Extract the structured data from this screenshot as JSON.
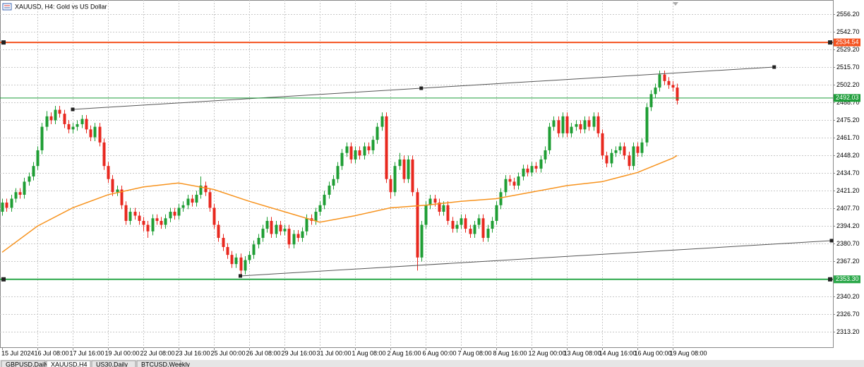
{
  "chart_data": {
    "type": "candlestick",
    "title": "XAUUSD, H4:  Gold vs US Dollar",
    "categories": [
      "15 Jul 2024",
      null,
      null,
      null,
      null,
      null,
      null,
      null,
      "16 Jul 08:00",
      null,
      null,
      null,
      null,
      null,
      null,
      null,
      "17 Jul 16:00",
      null,
      null,
      null,
      null,
      null,
      null,
      null,
      "19 Jul 00:00",
      null,
      null,
      null,
      null,
      null,
      null,
      null,
      "22 Jul 08:00",
      null,
      null,
      null,
      null,
      null,
      null,
      null,
      "23 Jul 16:00",
      null,
      null,
      null,
      null,
      null,
      null,
      null,
      "25 Jul 00:00",
      null,
      null,
      null,
      null,
      null,
      null,
      null,
      "26 Jul 08:00",
      null,
      null,
      null,
      null,
      null,
      null,
      null,
      "29 Jul 16:00",
      null,
      null,
      null,
      null,
      null,
      null,
      null,
      "31 Jul 00:00",
      null,
      null,
      null,
      null,
      null,
      null,
      null,
      "1 Aug 08:00",
      null,
      null,
      null,
      null,
      null,
      null,
      null,
      "2 Aug 16:00",
      null,
      null,
      null,
      null,
      null,
      null,
      null,
      "6 Aug 00:00",
      null,
      null,
      null,
      null,
      null,
      null,
      null,
      "7 Aug 08:00",
      null,
      null,
      null,
      null,
      null,
      null,
      null,
      "8 Aug 16:00",
      null,
      null,
      null,
      null,
      null,
      null,
      null,
      "12 Aug 00:00",
      null,
      null,
      null,
      null,
      null,
      null,
      null,
      "13 Aug 08:00",
      null,
      null,
      null,
      null,
      null,
      null,
      null,
      "14 Aug 16:00",
      null,
      null,
      null,
      null,
      null,
      null,
      null,
      "16 Aug 00:00",
      null,
      null,
      null,
      null,
      null,
      null,
      null,
      "19 Aug 08:00",
      null
    ],
    "ohlc": [
      [
        2405,
        2415,
        2402,
        2412
      ],
      [
        2412,
        2415,
        2405,
        2408
      ],
      [
        2408,
        2418,
        2405,
        2415
      ],
      [
        2415,
        2423,
        2412,
        2420
      ],
      [
        2420,
        2423,
        2415,
        2418
      ],
      [
        2418,
        2431,
        2415,
        2428
      ],
      [
        2428,
        2435,
        2425,
        2432
      ],
      [
        2432,
        2443,
        2429,
        2440
      ],
      [
        2440,
        2455,
        2437,
        2452
      ],
      [
        2452,
        2473,
        2449,
        2470
      ],
      [
        2470,
        2482,
        2467,
        2478
      ],
      [
        2478,
        2481,
        2472,
        2475
      ],
      [
        2475,
        2486,
        2472,
        2483
      ],
      [
        2483,
        2486,
        2477,
        2480
      ],
      [
        2480,
        2483,
        2469,
        2472
      ],
      [
        2472,
        2475,
        2465,
        2468
      ],
      [
        2468,
        2473,
        2465,
        2470
      ],
      [
        2470,
        2475,
        2467,
        2472
      ],
      [
        2472,
        2479,
        2469,
        2476
      ],
      [
        2476,
        2479,
        2465,
        2468
      ],
      [
        2468,
        2471,
        2459,
        2462
      ],
      [
        2462,
        2473,
        2459,
        2470
      ],
      [
        2470,
        2473,
        2455,
        2458
      ],
      [
        2458,
        2461,
        2437,
        2440
      ],
      [
        2440,
        2443,
        2427,
        2430
      ],
      [
        2430,
        2433,
        2417,
        2420
      ],
      [
        2420,
        2425,
        2417,
        2422
      ],
      [
        2422,
        2425,
        2407,
        2410
      ],
      [
        2410,
        2413,
        2395,
        2398
      ],
      [
        2398,
        2408,
        2395,
        2405
      ],
      [
        2405,
        2408,
        2399,
        2402
      ],
      [
        2402,
        2405,
        2395,
        2398
      ],
      [
        2398,
        2401,
        2390,
        2395
      ],
      [
        2395,
        2398,
        2385,
        2390
      ],
      [
        2390,
        2403,
        2387,
        2400
      ],
      [
        2400,
        2403,
        2395,
        2398
      ],
      [
        2398,
        2401,
        2392,
        2395
      ],
      [
        2395,
        2403,
        2392,
        2400
      ],
      [
        2400,
        2408,
        2397,
        2405
      ],
      [
        2405,
        2408,
        2399,
        2402
      ],
      [
        2402,
        2411,
        2399,
        2408
      ],
      [
        2408,
        2413,
        2405,
        2410
      ],
      [
        2410,
        2418,
        2407,
        2415
      ],
      [
        2415,
        2418,
        2409,
        2412
      ],
      [
        2412,
        2421,
        2409,
        2418
      ],
      [
        2418,
        2432,
        2415,
        2425
      ],
      [
        2425,
        2428,
        2417,
        2420
      ],
      [
        2420,
        2423,
        2405,
        2408
      ],
      [
        2408,
        2411,
        2392,
        2395
      ],
      [
        2395,
        2398,
        2382,
        2385
      ],
      [
        2385,
        2388,
        2375,
        2378
      ],
      [
        2378,
        2381,
        2369,
        2372
      ],
      [
        2372,
        2375,
        2362,
        2365
      ],
      [
        2365,
        2373,
        2362,
        2370
      ],
      [
        2370,
        2373,
        2355,
        2360
      ],
      [
        2360,
        2371,
        2357,
        2368
      ],
      [
        2368,
        2375,
        2365,
        2372
      ],
      [
        2372,
        2383,
        2369,
        2380
      ],
      [
        2380,
        2388,
        2377,
        2385
      ],
      [
        2385,
        2395,
        2382,
        2392
      ],
      [
        2392,
        2401,
        2389,
        2398
      ],
      [
        2398,
        2401,
        2385,
        2388
      ],
      [
        2388,
        2398,
        2385,
        2395
      ],
      [
        2395,
        2398,
        2387,
        2390
      ],
      [
        2390,
        2395,
        2387,
        2392
      ],
      [
        2392,
        2395,
        2377,
        2380
      ],
      [
        2380,
        2391,
        2377,
        2388
      ],
      [
        2388,
        2391,
        2382,
        2385
      ],
      [
        2385,
        2393,
        2382,
        2390
      ],
      [
        2390,
        2403,
        2387,
        2400
      ],
      [
        2400,
        2403,
        2395,
        2398
      ],
      [
        2398,
        2408,
        2395,
        2405
      ],
      [
        2405,
        2413,
        2402,
        2410
      ],
      [
        2410,
        2421,
        2407,
        2418
      ],
      [
        2418,
        2428,
        2415,
        2425
      ],
      [
        2425,
        2433,
        2422,
        2430
      ],
      [
        2430,
        2443,
        2427,
        2440
      ],
      [
        2440,
        2453,
        2437,
        2450
      ],
      [
        2450,
        2458,
        2447,
        2455
      ],
      [
        2455,
        2458,
        2442,
        2445
      ],
      [
        2445,
        2455,
        2442,
        2452
      ],
      [
        2452,
        2455,
        2445,
        2448
      ],
      [
        2448,
        2458,
        2445,
        2455
      ],
      [
        2455,
        2458,
        2449,
        2452
      ],
      [
        2452,
        2463,
        2449,
        2460
      ],
      [
        2460,
        2473,
        2457,
        2470
      ],
      [
        2470,
        2481,
        2467,
        2478
      ],
      [
        2478,
        2481,
        2427,
        2430
      ],
      [
        2430,
        2433,
        2415,
        2420
      ],
      [
        2420,
        2443,
        2417,
        2440
      ],
      [
        2440,
        2450,
        2437,
        2445
      ],
      [
        2445,
        2448,
        2427,
        2430
      ],
      [
        2430,
        2448,
        2427,
        2445
      ],
      [
        2445,
        2448,
        2417,
        2420
      ],
      [
        2420,
        2423,
        2360,
        2370
      ],
      [
        2370,
        2398,
        2367,
        2395
      ],
      [
        2395,
        2413,
        2392,
        2410
      ],
      [
        2410,
        2418,
        2407,
        2415
      ],
      [
        2415,
        2418,
        2409,
        2412
      ],
      [
        2412,
        2415,
        2402,
        2405
      ],
      [
        2405,
        2413,
        2402,
        2410
      ],
      [
        2410,
        2413,
        2395,
        2398
      ],
      [
        2398,
        2401,
        2389,
        2392
      ],
      [
        2392,
        2398,
        2389,
        2395
      ],
      [
        2395,
        2403,
        2392,
        2400
      ],
      [
        2400,
        2403,
        2389,
        2392
      ],
      [
        2392,
        2395,
        2385,
        2388
      ],
      [
        2388,
        2398,
        2385,
        2395
      ],
      [
        2395,
        2403,
        2392,
        2400
      ],
      [
        2400,
        2403,
        2382,
        2385
      ],
      [
        2385,
        2395,
        2382,
        2392
      ],
      [
        2392,
        2401,
        2389,
        2398
      ],
      [
        2398,
        2413,
        2395,
        2410
      ],
      [
        2410,
        2423,
        2407,
        2420
      ],
      [
        2420,
        2433,
        2417,
        2430
      ],
      [
        2430,
        2433,
        2425,
        2428
      ],
      [
        2428,
        2431,
        2422,
        2425
      ],
      [
        2425,
        2435,
        2422,
        2432
      ],
      [
        2432,
        2441,
        2429,
        2438
      ],
      [
        2438,
        2441,
        2432,
        2435
      ],
      [
        2435,
        2443,
        2432,
        2440
      ],
      [
        2440,
        2443,
        2435,
        2438
      ],
      [
        2438,
        2448,
        2435,
        2445
      ],
      [
        2445,
        2455,
        2442,
        2452
      ],
      [
        2452,
        2473,
        2449,
        2470
      ],
      [
        2470,
        2478,
        2467,
        2475
      ],
      [
        2475,
        2478,
        2462,
        2465
      ],
      [
        2465,
        2481,
        2462,
        2478
      ],
      [
        2478,
        2481,
        2462,
        2465
      ],
      [
        2465,
        2473,
        2462,
        2470
      ],
      [
        2470,
        2475,
        2467,
        2472
      ],
      [
        2472,
        2475,
        2465,
        2468
      ],
      [
        2468,
        2478,
        2465,
        2475
      ],
      [
        2475,
        2478,
        2467,
        2470
      ],
      [
        2470,
        2481,
        2467,
        2478
      ],
      [
        2478,
        2481,
        2462,
        2465
      ],
      [
        2465,
        2468,
        2445,
        2448
      ],
      [
        2448,
        2451,
        2439,
        2442
      ],
      [
        2442,
        2453,
        2439,
        2450
      ],
      [
        2450,
        2455,
        2447,
        2452
      ],
      [
        2452,
        2458,
        2449,
        2455
      ],
      [
        2455,
        2458,
        2445,
        2448
      ],
      [
        2448,
        2451,
        2437,
        2440
      ],
      [
        2440,
        2458,
        2437,
        2455
      ],
      [
        2455,
        2458,
        2447,
        2450
      ],
      [
        2450,
        2461,
        2447,
        2458
      ],
      [
        2458,
        2488,
        2455,
        2485
      ],
      [
        2485,
        2498,
        2482,
        2495
      ],
      [
        2495,
        2503,
        2492,
        2500
      ],
      [
        2500,
        2513,
        2497,
        2510
      ],
      [
        2510,
        2513,
        2502,
        2505
      ],
      [
        2505,
        2508,
        2499,
        2502
      ],
      [
        2502,
        2505,
        2497,
        2500
      ],
      [
        2500,
        2503,
        2487,
        2490
      ]
    ],
    "up_color": "#1f9e34",
    "down_color": "#e8281f",
    "ylim": [
      2300.8,
      2567
    ],
    "yticks": [
      {
        "value": 2556.2,
        "label": "2556.20"
      },
      {
        "value": 2542.7,
        "label": "2542.70"
      },
      {
        "value": 2529.2,
        "label": "2529.20"
      },
      {
        "value": 2515.7,
        "label": "2515.70"
      },
      {
        "value": 2502.2,
        "label": "2502.20"
      },
      {
        "value": 2488.7,
        "label": "2488.70"
      },
      {
        "value": 2475.2,
        "label": "2475.20"
      },
      {
        "value": 2461.7,
        "label": "2461.70"
      },
      {
        "value": 2448.2,
        "label": "2448.20"
      },
      {
        "value": 2434.7,
        "label": "2434.70"
      },
      {
        "value": 2421.2,
        "label": "2421.20"
      },
      {
        "value": 2407.7,
        "label": "2407.70"
      },
      {
        "value": 2394.2,
        "label": "2394.20"
      },
      {
        "value": 2380.7,
        "label": "2380.70"
      },
      {
        "value": 2367.2,
        "label": "2367.20"
      },
      {
        "value": 2353.7,
        "label": "2353.70"
      },
      {
        "value": 2340.2,
        "label": "2340.20"
      },
      {
        "value": 2326.7,
        "label": "2326.70"
      },
      {
        "value": 2313.2,
        "label": "2313.20"
      }
    ],
    "grid": true,
    "moving_average": {
      "color": "#f7931e",
      "x": [
        0,
        8,
        16,
        24,
        32,
        40,
        48,
        56,
        64,
        72,
        80,
        88,
        96,
        104,
        112,
        120,
        128,
        136,
        144,
        152,
        153
      ],
      "values": [
        2374,
        2394,
        2408,
        2418,
        2424,
        2427,
        2422,
        2413,
        2405,
        2397,
        2402,
        2408,
        2410,
        2413,
        2415,
        2420,
        2425,
        2428,
        2435,
        2446,
        2448
      ]
    },
    "levels": [
      {
        "value": 2534.54,
        "label": "2534.54",
        "color": "#f4511e",
        "style": "thick"
      },
      {
        "value": 2492.03,
        "label": "2492.03",
        "color": "#1e9e3a",
        "style": "thin"
      },
      {
        "value": 2353.3,
        "label": "2353.30",
        "color": "#2ba84a",
        "style": "thick"
      }
    ],
    "trendlines": [
      {
        "color": "#555555",
        "x": [
          16,
          95,
          175
        ],
        "values": [
          2483.3,
          2499.5,
          2515.7
        ]
      },
      {
        "color": "#555555",
        "x": [
          54,
          188
        ],
        "values": [
          2355.9,
          2382.9
        ]
      }
    ]
  },
  "tabs": [
    "GBPUSD,Daily",
    "XAUUSD,H4",
    "US30,Daily",
    "BTCUSD,Weekly"
  ]
}
